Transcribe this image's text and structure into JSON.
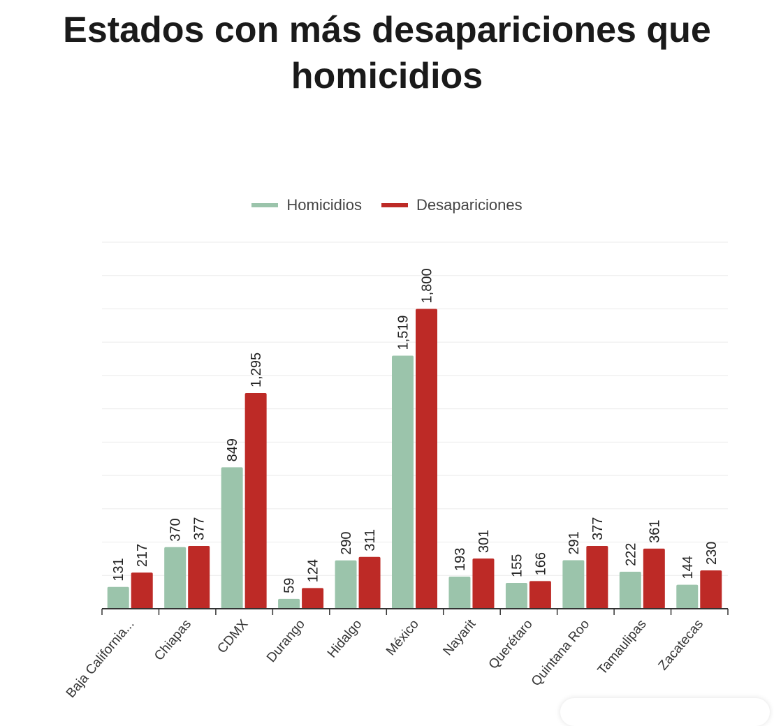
{
  "chart_data": {
    "type": "bar",
    "title": "Estados con más desapariciones que homicidios",
    "title_lines": [
      "Estados con más desapariciones que",
      "homicidios"
    ],
    "categories": [
      "Baja California...",
      "Chiapas",
      "CDMX",
      "Durango",
      "Hidalgo",
      "México",
      "Nayarit",
      "Querétaro",
      "Quintana Roo",
      "Tamaulipas",
      "Zacatecas"
    ],
    "series": [
      {
        "name": "Homicidios",
        "color": "#9bc4ab",
        "values": [
          131,
          370,
          849,
          59,
          290,
          1519,
          193,
          155,
          291,
          222,
          144
        ],
        "labels": [
          "131",
          "370",
          "849",
          "59",
          "290",
          "1,519",
          "193",
          "155",
          "291",
          "222",
          "144"
        ]
      },
      {
        "name": "Desapariciones",
        "color": "#bd2a26",
        "values": [
          217,
          377,
          1295,
          124,
          311,
          1800,
          301,
          166,
          377,
          361,
          230
        ],
        "labels": [
          "217",
          "377",
          "1,295",
          "124",
          "311",
          "1,800",
          "301",
          "166",
          "377",
          "361",
          "230"
        ]
      }
    ],
    "ylim": [
      0,
      2200
    ],
    "grid": true,
    "legend": "top-center",
    "xlabel": "",
    "ylabel": ""
  }
}
